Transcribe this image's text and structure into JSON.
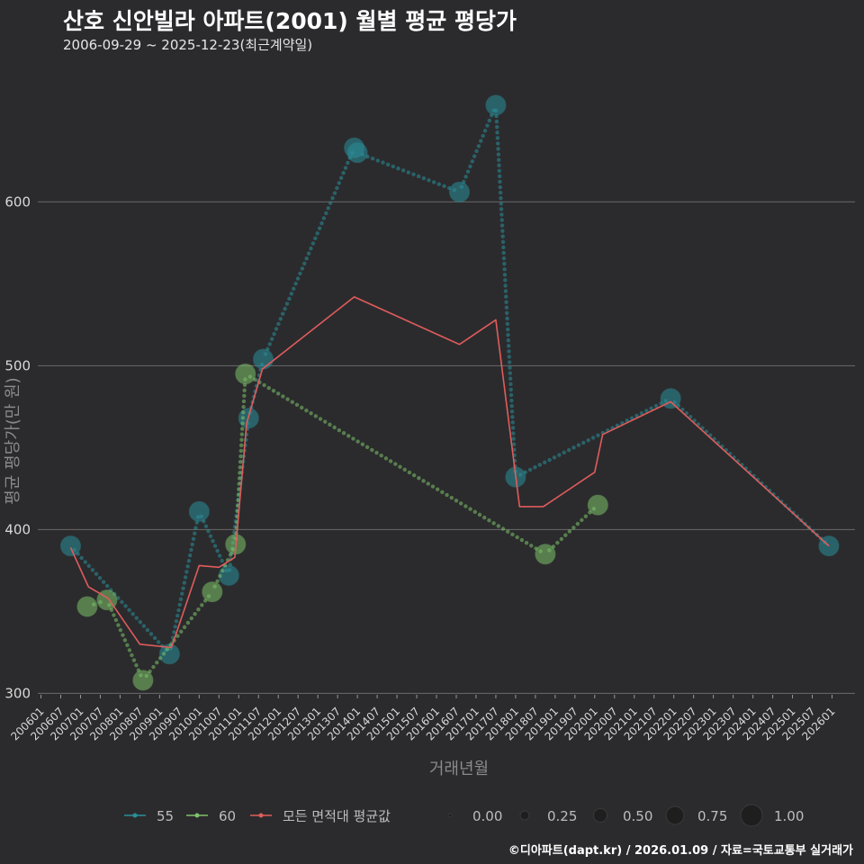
{
  "header": {
    "title": "산호 신안빌라 아파트(2001) 월별 평균 평당가",
    "subtitle": "2006-09-29 ~ 2025-12-23(최근계약일)"
  },
  "footer": {
    "text": "©디아파트(dapt.kr) / 2026.01.09 / 자료=국토교통부 실거래가"
  },
  "colors": {
    "s55": "#2a8f9a",
    "s60": "#7ec26a",
    "avg": "#e05c5c",
    "grid": "#6a6a6a"
  },
  "chart_data": {
    "type": "line",
    "title": "산호 신안빌라 아파트(2001) 월별 평균 평당가",
    "xlabel": "거래년월",
    "ylabel": "평균 평당가(만 원)",
    "ylim": [
      292,
      682
    ],
    "yticks": [
      300,
      400,
      500,
      600
    ],
    "xlim": [
      2005.92,
      2026.58
    ],
    "x_tick_labels": [
      "200601",
      "200607",
      "200701",
      "200707",
      "200801",
      "200807",
      "200901",
      "200907",
      "201001",
      "201007",
      "201101",
      "201107",
      "201201",
      "201207",
      "201301",
      "201307",
      "201401",
      "201407",
      "201501",
      "201507",
      "201601",
      "201607",
      "201701",
      "201707",
      "201801",
      "201807",
      "201901",
      "201907",
      "202001",
      "202007",
      "202101",
      "202107",
      "202201",
      "202207",
      "202301",
      "202307",
      "202401",
      "202407",
      "202501",
      "202507",
      "202601"
    ],
    "series": [
      {
        "name": "55",
        "points": [
          {
            "x": 2006.75,
            "y": 390
          },
          {
            "x": 2009.25,
            "y": 324
          },
          {
            "x": 2010.0,
            "y": 411
          },
          {
            "x": 2010.75,
            "y": 372
          },
          {
            "x": 2011.25,
            "y": 468
          },
          {
            "x": 2011.62,
            "y": 504
          },
          {
            "x": 2013.92,
            "y": 633
          },
          {
            "x": 2014.0,
            "y": 630
          },
          {
            "x": 2016.58,
            "y": 606
          },
          {
            "x": 2017.5,
            "y": 659
          },
          {
            "x": 2018.0,
            "y": 432
          },
          {
            "x": 2021.92,
            "y": 480
          },
          {
            "x": 2025.92,
            "y": 390
          }
        ]
      },
      {
        "name": "60",
        "points": [
          {
            "x": 2007.17,
            "y": 353
          },
          {
            "x": 2007.67,
            "y": 357
          },
          {
            "x": 2008.58,
            "y": 308
          },
          {
            "x": 2010.33,
            "y": 362
          },
          {
            "x": 2010.92,
            "y": 391
          },
          {
            "x": 2011.17,
            "y": 495
          },
          {
            "x": 2018.75,
            "y": 385
          },
          {
            "x": 2020.08,
            "y": 415
          }
        ]
      },
      {
        "name": "모든 면적대 평균값",
        "points": [
          {
            "x": 2006.75,
            "y": 389
          },
          {
            "x": 2007.2,
            "y": 365
          },
          {
            "x": 2007.7,
            "y": 358
          },
          {
            "x": 2008.5,
            "y": 330
          },
          {
            "x": 2009.3,
            "y": 328
          },
          {
            "x": 2010.0,
            "y": 378
          },
          {
            "x": 2010.5,
            "y": 377
          },
          {
            "x": 2010.9,
            "y": 383
          },
          {
            "x": 2011.2,
            "y": 465
          },
          {
            "x": 2011.6,
            "y": 498
          },
          {
            "x": 2013.92,
            "y": 542
          },
          {
            "x": 2016.58,
            "y": 513
          },
          {
            "x": 2017.5,
            "y": 528
          },
          {
            "x": 2018.1,
            "y": 414
          },
          {
            "x": 2018.7,
            "y": 414
          },
          {
            "x": 2020.0,
            "y": 435
          },
          {
            "x": 2020.2,
            "y": 458
          },
          {
            "x": 2021.92,
            "y": 478
          },
          {
            "x": 2025.92,
            "y": 390
          }
        ]
      }
    ],
    "legend": {
      "color_title": "",
      "color_items": [
        "55",
        "60",
        "모든 면적대 평균값"
      ],
      "size_items": [
        "0.00",
        "0.25",
        "0.50",
        "0.75",
        "1.00"
      ]
    }
  }
}
